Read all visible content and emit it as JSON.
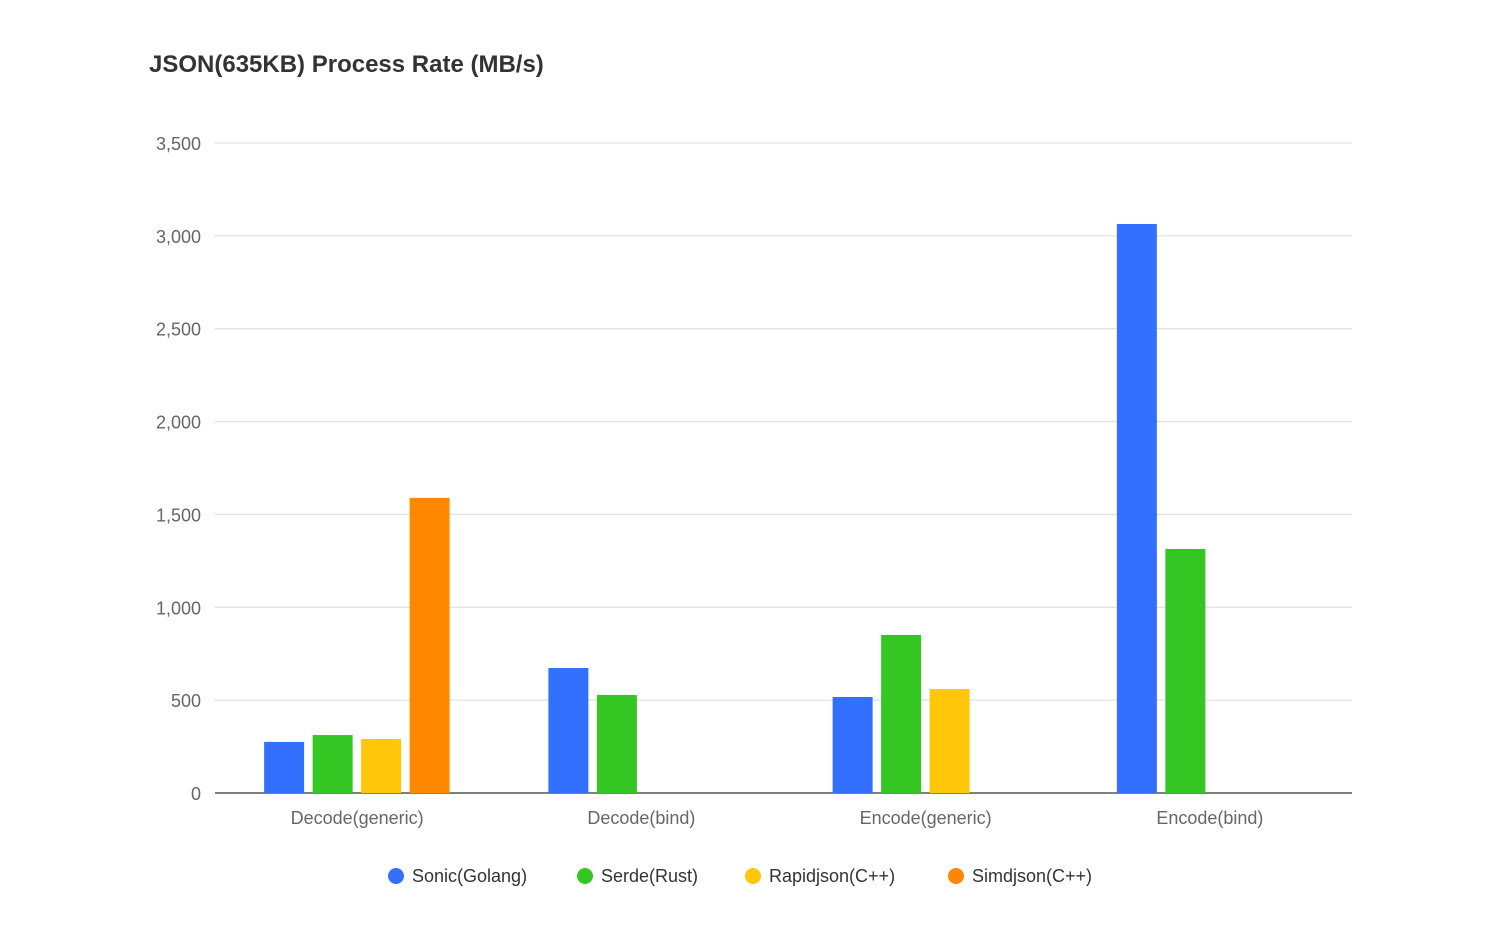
{
  "chart_data": {
    "type": "bar",
    "title": "JSON(635KB) Process Rate (MB/s)",
    "xlabel": "",
    "ylabel": "",
    "ylim": [
      0,
      3500
    ],
    "yticks": [
      0,
      500,
      1000,
      1500,
      2000,
      2500,
      3000,
      3500
    ],
    "ytick_labels": [
      "0",
      "500",
      "1,000",
      "1,500",
      "2,000",
      "2,500",
      "3,000",
      "3,500"
    ],
    "grid": true,
    "legend_position": "bottom",
    "categories": [
      "Decode(generic)",
      "Decode(bind)",
      "Encode(generic)",
      "Encode(bind)"
    ],
    "series": [
      {
        "name": "Sonic(Golang)",
        "color": "#3370ff",
        "values": [
          275,
          673,
          517,
          3064
        ]
      },
      {
        "name": "Serde(Rust)",
        "color": "#34c724",
        "values": [
          312,
          528,
          851,
          1314
        ]
      },
      {
        "name": "Rapidjson(C++)",
        "color": "#ffc60a",
        "values": [
          291,
          null,
          560,
          null
        ]
      },
      {
        "name": "Simdjson(C++)",
        "color": "#ff8800",
        "values": [
          1589,
          null,
          null,
          null
        ]
      }
    ]
  }
}
